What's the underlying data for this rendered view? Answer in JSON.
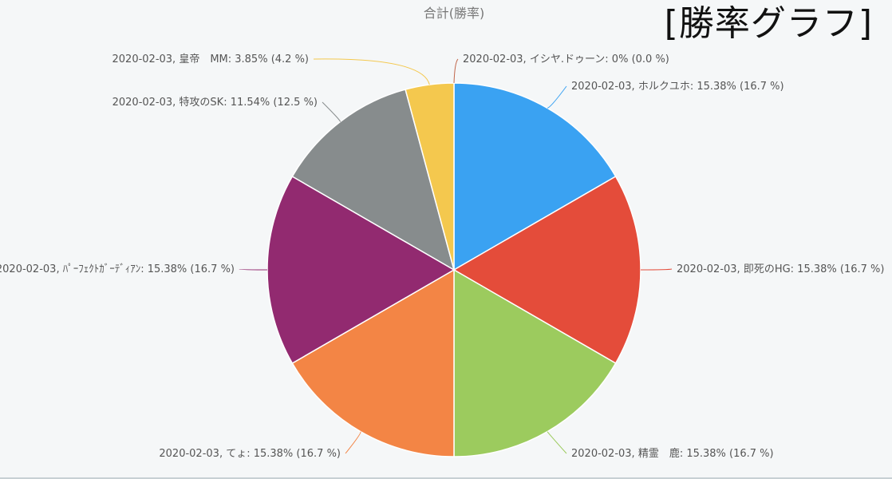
{
  "watermark": "[勝率グラフ]",
  "chart_data": {
    "type": "pie",
    "title": "合計(勝率)",
    "slices": [
      {
        "label": "2020-02-03, ホルクユホ: 15.38% (16.7 %)",
        "value": 16.7,
        "color": "#3aa2f2"
      },
      {
        "label": "2020-02-03, 即死のHG: 15.38% (16.7 %)",
        "value": 16.7,
        "color": "#e44c3a"
      },
      {
        "label": "2020-02-03, 精霊　鹿: 15.38% (16.7 %)",
        "value": 16.7,
        "color": "#9ccb5e"
      },
      {
        "label": "2020-02-03, てょ: 15.38% (16.7 %)",
        "value": 16.7,
        "color": "#f38545"
      },
      {
        "label": "2020-02-03, ﾊﾟｰﾌｪｸﾄｶﾞｰﾃﾞｨｱﾝ: 15.38% (16.7 %)",
        "value": 16.7,
        "color": "#922a70"
      },
      {
        "label": "2020-02-03, 特攻のSK: 11.54% (12.5 %)",
        "value": 12.5,
        "color": "#878c8d"
      },
      {
        "label": "2020-02-03, 皇帝　MM: 3.85% (4.2 %)",
        "value": 4.2,
        "color": "#f4c84e"
      },
      {
        "label": "2020-02-03, イシヤ.ドゥーン: 0% (0.0 %)",
        "value": 0,
        "color": "#c0654a"
      }
    ]
  }
}
